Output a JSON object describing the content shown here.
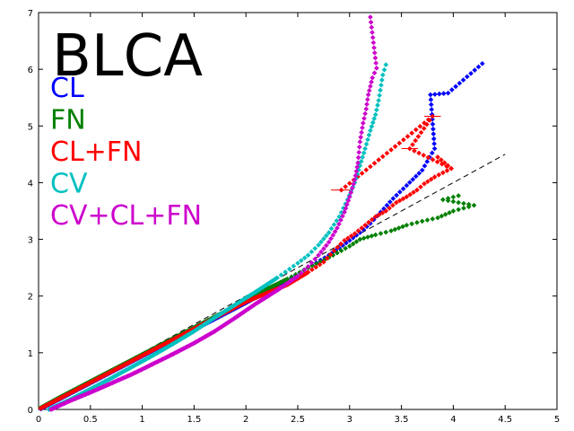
{
  "chart_data": {
    "type": "scatter",
    "title": "BLCA",
    "xlim": [
      0,
      5
    ],
    "ylim": [
      0,
      7
    ],
    "xticks": [
      "0",
      "0.5",
      "1",
      "1.5",
      "2",
      "2.5",
      "3",
      "3.5",
      "4",
      "4.5",
      "5"
    ],
    "yticks": [
      "0",
      "1",
      "2",
      "3",
      "4",
      "5",
      "6",
      "7"
    ],
    "grid": false,
    "legend_position": "top-left",
    "reference_line": {
      "style": "dashed",
      "color": "#000000",
      "x": [
        0,
        4.5
      ],
      "y": [
        0,
        4.5
      ]
    },
    "series": [
      {
        "name": "CL",
        "color": "#0000ff",
        "points": [
          [
            0.02,
            0.01
          ],
          [
            0.2,
            0.18
          ],
          [
            0.4,
            0.37
          ],
          [
            0.6,
            0.56
          ],
          [
            0.8,
            0.75
          ],
          [
            1.0,
            0.94
          ],
          [
            1.2,
            1.13
          ],
          [
            1.4,
            1.32
          ],
          [
            1.6,
            1.5
          ],
          [
            1.8,
            1.69
          ],
          [
            2.0,
            1.88
          ],
          [
            2.2,
            2.08
          ],
          [
            2.4,
            2.28
          ],
          [
            2.6,
            2.5
          ],
          [
            2.8,
            2.72
          ],
          [
            2.9,
            2.85
          ],
          [
            3.0,
            2.98
          ],
          [
            3.1,
            3.12
          ],
          [
            3.2,
            3.28
          ],
          [
            3.3,
            3.48
          ],
          [
            3.42,
            3.72
          ],
          [
            3.55,
            3.95
          ],
          [
            3.7,
            4.22
          ],
          [
            3.82,
            4.6
          ],
          [
            3.78,
            5.55
          ],
          [
            3.95,
            5.58
          ],
          [
            4.28,
            6.1
          ]
        ]
      },
      {
        "name": "FN",
        "color": "#008000",
        "points": [
          [
            0.02,
            0.03
          ],
          [
            0.2,
            0.21
          ],
          [
            0.4,
            0.4
          ],
          [
            0.6,
            0.59
          ],
          [
            0.8,
            0.78
          ],
          [
            1.0,
            0.97
          ],
          [
            1.2,
            1.16
          ],
          [
            1.4,
            1.35
          ],
          [
            1.6,
            1.54
          ],
          [
            1.8,
            1.73
          ],
          [
            2.0,
            1.93
          ],
          [
            2.2,
            2.12
          ],
          [
            2.4,
            2.3
          ],
          [
            2.6,
            2.5
          ],
          [
            2.8,
            2.68
          ],
          [
            3.0,
            2.88
          ],
          [
            3.1,
            3.0
          ],
          [
            3.25,
            3.08
          ],
          [
            3.4,
            3.15
          ],
          [
            3.55,
            3.25
          ],
          [
            3.7,
            3.32
          ],
          [
            3.85,
            3.38
          ],
          [
            4.0,
            3.5
          ],
          [
            4.2,
            3.6
          ],
          [
            3.9,
            3.7
          ],
          [
            4.05,
            3.77
          ]
        ]
      },
      {
        "name": "CL+FN",
        "color": "#ff0000",
        "points": [
          [
            0.02,
            0.02
          ],
          [
            0.2,
            0.19
          ],
          [
            0.4,
            0.38
          ],
          [
            0.6,
            0.57
          ],
          [
            0.8,
            0.76
          ],
          [
            1.0,
            0.95
          ],
          [
            1.2,
            1.14
          ],
          [
            1.4,
            1.33
          ],
          [
            1.6,
            1.52
          ],
          [
            1.8,
            1.71
          ],
          [
            2.0,
            1.9
          ],
          [
            2.2,
            2.05
          ],
          [
            2.4,
            2.2
          ],
          [
            2.6,
            2.42
          ],
          [
            2.75,
            2.6
          ],
          [
            2.85,
            2.8
          ],
          [
            2.95,
            2.98
          ],
          [
            3.05,
            3.1
          ],
          [
            3.15,
            3.25
          ],
          [
            3.25,
            3.4
          ],
          [
            3.35,
            3.5
          ],
          [
            3.45,
            3.65
          ],
          [
            3.55,
            3.75
          ],
          [
            3.65,
            3.87
          ],
          [
            3.72,
            3.98
          ],
          [
            3.82,
            4.1
          ],
          [
            3.98,
            4.25
          ],
          [
            3.85,
            4.45
          ],
          [
            3.98,
            4.25
          ],
          [
            3.58,
            4.6
          ],
          [
            3.8,
            5.17
          ],
          [
            2.92,
            3.87
          ]
        ],
        "error_bars_x": [
          [
            3.58,
            4.6,
            0.08
          ],
          [
            3.8,
            5.17,
            0.08
          ],
          [
            2.92,
            3.87,
            0.1
          ]
        ]
      },
      {
        "name": "CV",
        "color": "#00c0c0",
        "points": [
          [
            0.1,
            0.0
          ],
          [
            0.3,
            0.17
          ],
          [
            0.5,
            0.36
          ],
          [
            0.7,
            0.55
          ],
          [
            0.9,
            0.75
          ],
          [
            1.1,
            0.95
          ],
          [
            1.3,
            1.16
          ],
          [
            1.5,
            1.38
          ],
          [
            1.7,
            1.62
          ],
          [
            1.9,
            1.85
          ],
          [
            2.1,
            2.08
          ],
          [
            2.3,
            2.32
          ],
          [
            2.5,
            2.58
          ],
          [
            2.6,
            2.72
          ],
          [
            2.7,
            2.9
          ],
          [
            2.8,
            3.12
          ],
          [
            2.9,
            3.4
          ],
          [
            2.98,
            3.7
          ],
          [
            3.05,
            4.0
          ],
          [
            3.1,
            4.3
          ],
          [
            3.15,
            4.6
          ],
          [
            3.2,
            4.92
          ],
          [
            3.25,
            5.2
          ],
          [
            3.28,
            5.45
          ],
          [
            3.32,
            5.9
          ],
          [
            3.35,
            6.08
          ]
        ]
      },
      {
        "name": "CV+CL+FN",
        "color": "#cc00cc",
        "points": [
          [
            0.12,
            0.0
          ],
          [
            0.3,
            0.15
          ],
          [
            0.5,
            0.3
          ],
          [
            0.7,
            0.46
          ],
          [
            0.9,
            0.62
          ],
          [
            1.1,
            0.8
          ],
          [
            1.3,
            0.98
          ],
          [
            1.5,
            1.17
          ],
          [
            1.7,
            1.38
          ],
          [
            1.9,
            1.62
          ],
          [
            2.1,
            1.87
          ],
          [
            2.3,
            2.1
          ],
          [
            2.5,
            2.35
          ],
          [
            2.6,
            2.52
          ],
          [
            2.7,
            2.72
          ],
          [
            2.8,
            2.95
          ],
          [
            2.88,
            3.2
          ],
          [
            2.95,
            3.48
          ],
          [
            3.0,
            3.75
          ],
          [
            3.05,
            4.05
          ],
          [
            3.08,
            4.35
          ],
          [
            3.1,
            4.72
          ],
          [
            3.13,
            5.05
          ],
          [
            3.16,
            5.3
          ],
          [
            3.18,
            5.55
          ],
          [
            3.22,
            5.85
          ],
          [
            3.26,
            6.02
          ],
          [
            3.2,
            6.92
          ]
        ]
      }
    ]
  }
}
